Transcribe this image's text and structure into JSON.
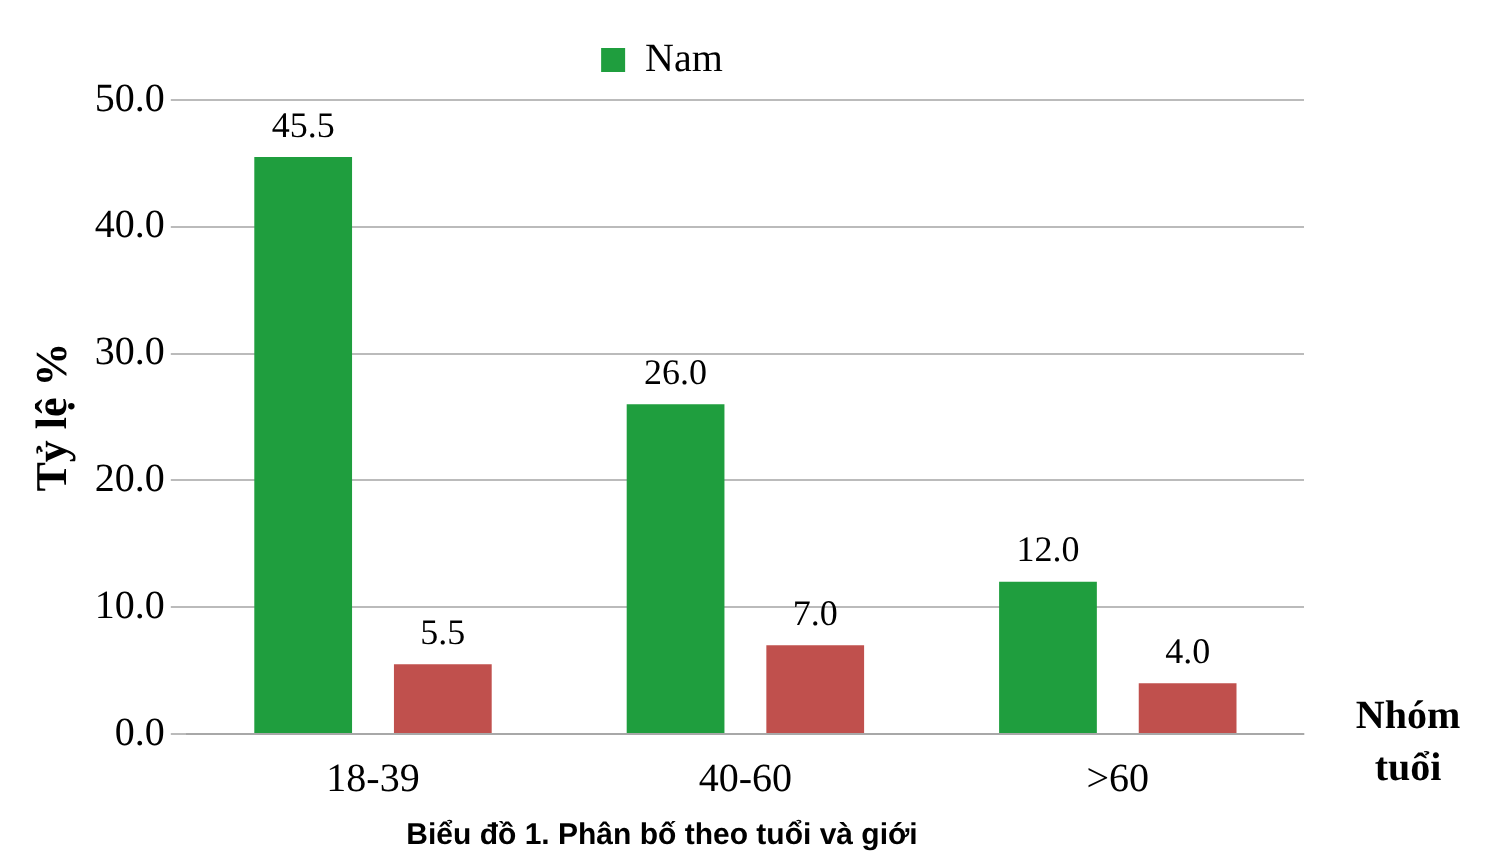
{
  "chart_data": {
    "type": "bar",
    "title": "Biểu đồ 1. Phân bố theo tuổi và giới",
    "xlabel": "Nhóm tuổi",
    "ylabel": "Tỷ lệ %",
    "categories": [
      "18-39",
      "40-60",
      ">60"
    ],
    "series": [
      {
        "name": "Nam",
        "color": "#1f9e3e",
        "values": [
          45.5,
          26.0,
          12.0
        ],
        "value_labels": [
          "45.5",
          "26.0",
          "12.0"
        ]
      },
      {
        "color": "#c0504d",
        "values": [
          5.5,
          7.0,
          4.0
        ],
        "value_labels": [
          "5.5",
          "7.0",
          "4.0"
        ]
      }
    ],
    "ylim": [
      0,
      50
    ],
    "yticks": [
      {
        "value": 0,
        "label": "0.0"
      },
      {
        "value": 10,
        "label": "10.0"
      },
      {
        "value": 20,
        "label": "20.0"
      },
      {
        "value": 30,
        "label": "30.0"
      },
      {
        "value": 40,
        "label": "40.0"
      },
      {
        "value": 50,
        "label": "50.0"
      }
    ],
    "grid": "y",
    "legend": "top"
  }
}
